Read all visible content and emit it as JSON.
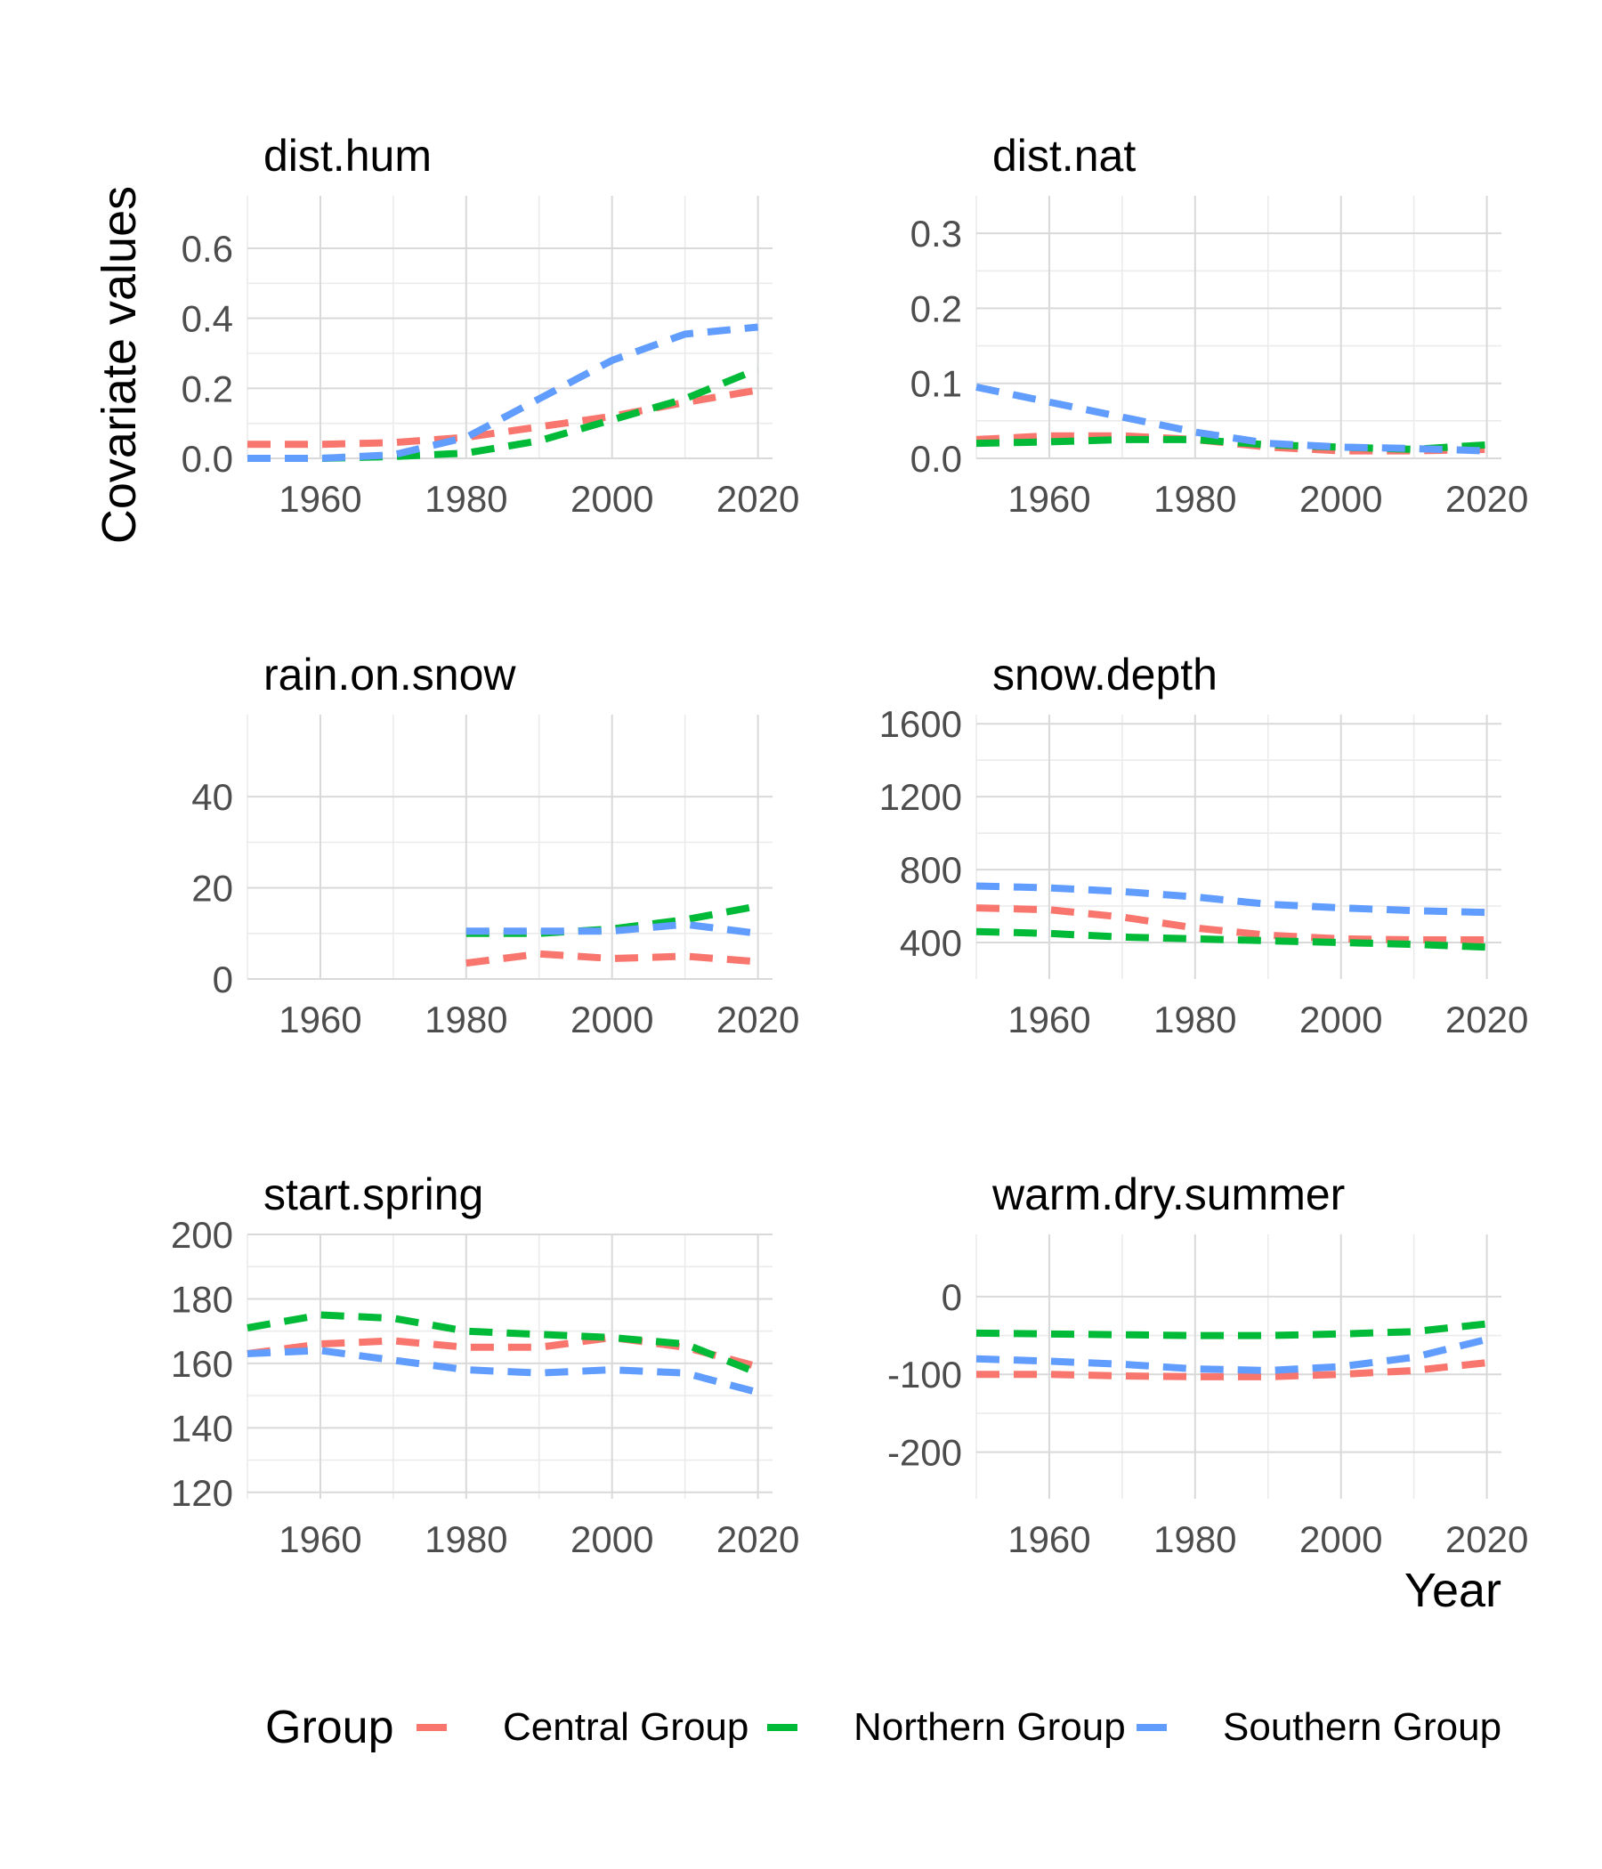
{
  "figure": {
    "y_axis_title": "Covariate values",
    "x_axis_title": "Year"
  },
  "legend": {
    "title": "Group",
    "placement": "bottom",
    "items": [
      {
        "label": "Central Group",
        "color": "#F8766D"
      },
      {
        "label": "Northern Group",
        "color": "#00BA38"
      },
      {
        "label": "Southern Group",
        "color": "#619CFF"
      }
    ]
  },
  "chart_data": [
    {
      "type": "line",
      "title": "dist.hum",
      "xlim": [
        1950,
        2022
      ],
      "ylim": [
        0,
        0.75
      ],
      "xticks": [
        1960,
        1980,
        2000,
        2020
      ],
      "yticks": [
        0.0,
        0.2,
        0.4,
        0.6
      ],
      "ytick_labels": [
        "0.0",
        "0.2",
        "0.4",
        "0.6"
      ],
      "grid": true,
      "x": [
        1950,
        1960,
        1970,
        1980,
        1990,
        2000,
        2010,
        2020
      ],
      "series": [
        {
          "name": "Central Group",
          "values": [
            0.04,
            0.04,
            0.045,
            0.06,
            0.09,
            0.12,
            0.16,
            0.195
          ]
        },
        {
          "name": "Northern Group",
          "values": [
            0.0,
            0.0,
            0.005,
            0.015,
            0.05,
            0.11,
            0.17,
            0.255
          ]
        },
        {
          "name": "Southern Group",
          "values": [
            0.0,
            0.0,
            0.01,
            0.06,
            0.17,
            0.28,
            0.355,
            0.375
          ]
        }
      ]
    },
    {
      "type": "line",
      "title": "dist.nat",
      "xlim": [
        1950,
        2022
      ],
      "ylim": [
        0,
        0.35
      ],
      "xticks": [
        1960,
        1980,
        2000,
        2020
      ],
      "yticks": [
        0.0,
        0.1,
        0.2,
        0.3
      ],
      "ytick_labels": [
        "0.0",
        "0.1",
        "0.2",
        "0.3"
      ],
      "grid": true,
      "x": [
        1950,
        1960,
        1970,
        1980,
        1990,
        2000,
        2010,
        2020
      ],
      "series": [
        {
          "name": "Central Group",
          "values": [
            0.025,
            0.03,
            0.03,
            0.025,
            0.015,
            0.01,
            0.01,
            0.012
          ]
        },
        {
          "name": "Northern Group",
          "values": [
            0.02,
            0.022,
            0.025,
            0.025,
            0.018,
            0.015,
            0.012,
            0.018
          ]
        },
        {
          "name": "Southern Group",
          "values": [
            0.095,
            0.075,
            0.055,
            0.035,
            0.02,
            0.015,
            0.013,
            0.01
          ]
        }
      ]
    },
    {
      "type": "line",
      "title": "rain.on.snow",
      "xlim": [
        1950,
        2022
      ],
      "ylim": [
        0,
        58
      ],
      "xticks": [
        1960,
        1980,
        2000,
        2020
      ],
      "yticks": [
        0,
        20,
        40
      ],
      "ytick_labels": [
        "0",
        "20",
        "40"
      ],
      "grid": true,
      "x": [
        1980,
        1990,
        2000,
        2010,
        2020
      ],
      "series": [
        {
          "name": "Central Group",
          "values": [
            3.5,
            5.5,
            4.5,
            5.0,
            3.8
          ]
        },
        {
          "name": "Northern Group",
          "values": [
            10.0,
            10.0,
            11.0,
            13.0,
            16.0
          ]
        },
        {
          "name": "Southern Group",
          "values": [
            10.5,
            10.5,
            10.5,
            12.0,
            10.0
          ]
        }
      ]
    },
    {
      "type": "line",
      "title": "snow.depth",
      "xlim": [
        1950,
        2022
      ],
      "ylim": [
        200,
        1650
      ],
      "xticks": [
        1960,
        1980,
        2000,
        2020
      ],
      "yticks": [
        400,
        800,
        1200,
        1600
      ],
      "ytick_labels": [
        "400",
        "800",
        "1200",
        "1600"
      ],
      "grid": true,
      "x": [
        1950,
        1960,
        1970,
        1980,
        1990,
        2000,
        2010,
        2020
      ],
      "series": [
        {
          "name": "Central Group",
          "values": [
            590,
            580,
            540,
            480,
            440,
            420,
            415,
            415
          ]
        },
        {
          "name": "Northern Group",
          "values": [
            460,
            450,
            430,
            420,
            410,
            400,
            390,
            375
          ]
        },
        {
          "name": "Southern Group",
          "values": [
            710,
            700,
            680,
            650,
            610,
            590,
            575,
            565
          ]
        }
      ]
    },
    {
      "type": "line",
      "title": "start.spring",
      "xlim": [
        1950,
        2022
      ],
      "ylim": [
        118,
        200
      ],
      "xticks": [
        1960,
        1980,
        2000,
        2020
      ],
      "yticks": [
        120,
        140,
        160,
        180,
        200
      ],
      "ytick_labels": [
        "120",
        "140",
        "160",
        "180",
        "200"
      ],
      "grid": true,
      "x": [
        1950,
        1960,
        1970,
        1980,
        1990,
        2000,
        2010,
        2020
      ],
      "series": [
        {
          "name": "Central Group",
          "values": [
            163,
            166,
            167,
            165,
            165,
            168,
            165,
            159
          ]
        },
        {
          "name": "Northern Group",
          "values": [
            171,
            175,
            174,
            170,
            169,
            168,
            166,
            157
          ]
        },
        {
          "name": "Southern Group",
          "values": [
            163,
            164,
            161,
            158,
            157,
            158,
            157,
            151
          ]
        }
      ]
    },
    {
      "type": "line",
      "title": "warm.dry.summer",
      "xlim": [
        1950,
        2022
      ],
      "ylim": [
        -260,
        80
      ],
      "xticks": [
        1960,
        1980,
        2000,
        2020
      ],
      "yticks": [
        -200,
        -100,
        0
      ],
      "ytick_labels": [
        "-200",
        "-100",
        "0"
      ],
      "grid": true,
      "x": [
        1950,
        1960,
        1970,
        1980,
        1990,
        2000,
        2010,
        2020
      ],
      "series": [
        {
          "name": "Central Group",
          "values": [
            -100,
            -100,
            -102,
            -103,
            -103,
            -100,
            -95,
            -85
          ]
        },
        {
          "name": "Northern Group",
          "values": [
            -47,
            -48,
            -49,
            -50,
            -50,
            -48,
            -45,
            -35
          ]
        },
        {
          "name": "Southern Group",
          "values": [
            -80,
            -83,
            -87,
            -93,
            -95,
            -90,
            -78,
            -55
          ]
        }
      ]
    }
  ]
}
